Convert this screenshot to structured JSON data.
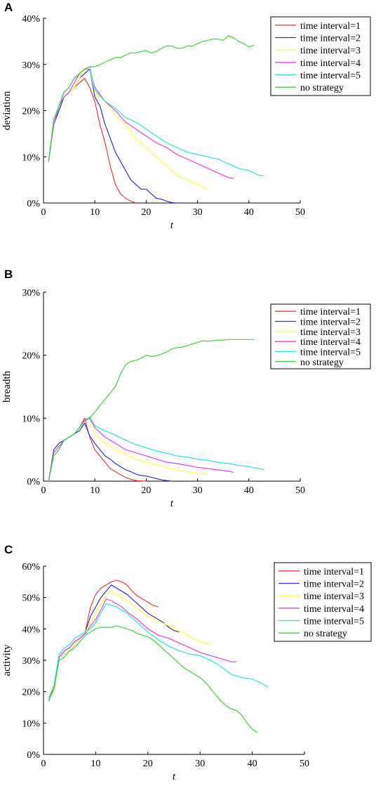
{
  "chart_data": [
    {
      "panel_label": "A",
      "type": "line",
      "xlabel": "t",
      "ylabel": "deviation",
      "xlim": [
        0,
        50
      ],
      "ylim": [
        0,
        40
      ],
      "xticks": [
        "0",
        "10",
        "20",
        "30",
        "40",
        "50"
      ],
      "yticks": [
        "0%",
        "10%",
        "20%",
        "30%",
        "40%"
      ],
      "legend_position": "top-right",
      "series": [
        {
          "name": "time interval=1",
          "color": "#e04040",
          "x": [
            1,
            2,
            3,
            4,
            5,
            6,
            7,
            8,
            9,
            10,
            11,
            12,
            13,
            14,
            15,
            16,
            17,
            18
          ],
          "y": [
            9,
            17,
            20,
            23,
            24,
            25,
            26,
            27,
            25,
            22,
            17,
            13,
            8,
            4,
            2,
            1,
            0.4,
            0
          ]
        },
        {
          "name": "time interval=2",
          "color": "#3333cc",
          "x": [
            1,
            2,
            3,
            4,
            5,
            6,
            7,
            8,
            9,
            10,
            11,
            12,
            13,
            14,
            15,
            16,
            17,
            18,
            19,
            20,
            21,
            22,
            23,
            24,
            25,
            26
          ],
          "y": [
            9,
            17,
            20,
            23,
            24,
            25,
            27,
            28,
            29,
            23,
            21,
            17,
            14,
            11,
            9,
            7,
            5,
            4,
            3,
            3,
            2,
            1,
            0.8,
            0.4,
            0.1,
            0
          ]
        },
        {
          "name": "time interval=3",
          "color": "#ffff44",
          "x": [
            1,
            2,
            3,
            4,
            5,
            6,
            7,
            8,
            9,
            10,
            12,
            14,
            16,
            18,
            20,
            22,
            24,
            26,
            28,
            30,
            32
          ],
          "y": [
            9,
            17,
            21,
            23,
            24,
            25,
            27,
            29,
            29,
            24,
            22,
            19,
            17,
            14,
            12,
            10,
            8,
            6,
            5,
            4,
            3
          ]
        },
        {
          "name": "time interval=4",
          "color": "#dd44dd",
          "x": [
            1,
            2,
            3,
            4,
            5,
            6,
            7,
            8,
            9,
            10,
            12,
            14,
            16,
            18,
            20,
            22,
            24,
            26,
            28,
            30,
            32,
            34,
            36,
            37
          ],
          "y": [
            9,
            17,
            21,
            23,
            24,
            26,
            28,
            29,
            29,
            25,
            22,
            20,
            17.5,
            16,
            14.5,
            13,
            12,
            10.5,
            9.5,
            8.5,
            7.5,
            6.5,
            5.5,
            5.3
          ]
        },
        {
          "name": "time interval=5",
          "color": "#33dddd",
          "x": [
            1,
            2,
            3,
            4,
            5,
            6,
            7,
            8,
            9,
            10,
            12,
            14,
            16,
            18,
            20,
            22,
            24,
            26,
            28,
            30,
            32,
            34,
            36,
            38,
            40,
            42,
            43
          ],
          "y": [
            9,
            18,
            21,
            24,
            25,
            27,
            28,
            29,
            29.5,
            24.5,
            22,
            20.5,
            18.5,
            17.5,
            16,
            14.5,
            13,
            12,
            11,
            10.5,
            10,
            9.5,
            8.5,
            7.5,
            7,
            6,
            5.9
          ]
        },
        {
          "name": "no strategy",
          "color": "#44cc44",
          "x": [
            1,
            2,
            3,
            4,
            5,
            6,
            7,
            8,
            9,
            10,
            11,
            12,
            13,
            14,
            15,
            16,
            17,
            18,
            19,
            20,
            21,
            22,
            23,
            24,
            25,
            26,
            27,
            28,
            29,
            30,
            31,
            32,
            33,
            34,
            35,
            36,
            37,
            38,
            39,
            40,
            41
          ],
          "y": [
            9,
            18,
            21,
            24,
            25,
            27,
            28,
            29,
            29.5,
            29.5,
            30,
            30.5,
            31,
            31.5,
            31.5,
            32,
            32.5,
            32.5,
            32.8,
            33,
            32.5,
            32.8,
            33.5,
            34,
            34,
            33.5,
            33.5,
            34,
            34,
            34.5,
            35,
            35.2,
            35.5,
            35.5,
            35.2,
            36.2,
            35.8,
            35,
            34.5,
            33.8,
            34.2
          ]
        }
      ]
    },
    {
      "panel_label": "B",
      "type": "line",
      "xlabel": "t",
      "ylabel": "breadth",
      "xlim": [
        0,
        50
      ],
      "ylim": [
        0,
        30
      ],
      "xticks": [
        "0",
        "10",
        "20",
        "30",
        "40",
        "50"
      ],
      "yticks": [
        "0%",
        "10%",
        "20%",
        "30%"
      ],
      "legend_position": "top-right",
      "series": [
        {
          "name": "time interval=1",
          "color": "#e04040",
          "x": [
            1,
            2,
            3,
            4,
            5,
            6,
            7,
            8,
            9,
            10,
            11,
            12,
            13,
            14,
            15,
            16,
            17,
            18,
            19,
            20
          ],
          "y": [
            0,
            4.5,
            5.5,
            6.5,
            7,
            7.5,
            8.5,
            10,
            7,
            5,
            4,
            3,
            2,
            1.5,
            1,
            0.6,
            0.3,
            0.1,
            0.05,
            0
          ]
        },
        {
          "name": "time interval=2",
          "color": "#3333cc",
          "x": [
            1,
            2,
            3,
            4,
            5,
            6,
            7,
            8,
            9,
            10,
            11,
            12,
            13,
            14,
            15,
            16,
            17,
            18,
            19,
            20,
            21,
            22,
            23,
            24,
            25
          ],
          "y": [
            0,
            5,
            6,
            6.5,
            7,
            7.5,
            8,
            9.2,
            7.2,
            6,
            5,
            4,
            3.5,
            2.8,
            2.3,
            1.8,
            1.5,
            1.1,
            0.9,
            0.8,
            0.6,
            0.4,
            0.2,
            0.1,
            0
          ]
        },
        {
          "name": "time interval=3",
          "color": "#ffff44",
          "x": [
            1,
            2,
            3,
            4,
            5,
            6,
            7,
            8,
            9,
            10,
            12,
            14,
            16,
            18,
            20,
            22,
            24,
            26,
            28,
            30,
            32
          ],
          "y": [
            0,
            4.5,
            5.5,
            6.5,
            7,
            7.5,
            8.5,
            9.8,
            10,
            7.5,
            6,
            5,
            4.2,
            3.5,
            3,
            2.6,
            2.2,
            1.8,
            1.5,
            1.3,
            1.1
          ]
        },
        {
          "name": "time interval=4",
          "color": "#dd44dd",
          "x": [
            1,
            2,
            3,
            4,
            5,
            6,
            7,
            8,
            9,
            10,
            12,
            14,
            16,
            18,
            20,
            22,
            24,
            26,
            28,
            30,
            32,
            34,
            36,
            37
          ],
          "y": [
            0,
            4.5,
            5.5,
            6.5,
            7,
            7.5,
            8.5,
            9.8,
            10,
            8.5,
            7,
            6,
            5,
            4.5,
            4,
            3.5,
            3,
            2.8,
            2.5,
            2.2,
            2,
            1.8,
            1.6,
            1.4
          ]
        },
        {
          "name": "time interval=5",
          "color": "#33dddd",
          "x": [
            1,
            2,
            3,
            4,
            5,
            6,
            7,
            8,
            9,
            10,
            12,
            14,
            16,
            18,
            20,
            22,
            24,
            26,
            28,
            30,
            32,
            34,
            36,
            38,
            40,
            42,
            43
          ],
          "y": [
            0,
            4,
            5,
            6.5,
            7,
            7.5,
            8.5,
            9.5,
            10.2,
            8.8,
            8,
            7.3,
            6.5,
            5.8,
            5.3,
            4.8,
            4.4,
            4,
            3.8,
            3.5,
            3.3,
            3,
            2.8,
            2.5,
            2.3,
            2,
            1.8
          ]
        },
        {
          "name": "no strategy",
          "color": "#44cc44",
          "x": [
            1,
            2,
            3,
            4,
            5,
            6,
            7,
            8,
            9,
            10,
            11,
            12,
            13,
            14,
            15,
            16,
            17,
            18,
            19,
            20,
            21,
            22,
            23,
            24,
            25,
            26,
            27,
            28,
            29,
            30,
            31,
            32,
            33,
            34,
            35,
            36,
            37,
            38,
            39,
            40,
            41
          ],
          "y": [
            0,
            4,
            5,
            6.5,
            7,
            7.5,
            8.5,
            9.5,
            10,
            11,
            12,
            13,
            14,
            15,
            17,
            18.5,
            19,
            19.2,
            19.5,
            20,
            19.8,
            19.9,
            20.2,
            20.5,
            21,
            21.2,
            21.3,
            21.5,
            21.8,
            22,
            22.3,
            22.2,
            22.3,
            22.4,
            22.4,
            22.5,
            22.5,
            22.5,
            22.5,
            22.5,
            22.5
          ]
        }
      ]
    },
    {
      "panel_label": "C",
      "type": "line",
      "xlabel": "t",
      "ylabel": "activity",
      "xlim": [
        0,
        50
      ],
      "ylim": [
        0,
        60
      ],
      "xticks": [
        "0",
        "10",
        "20",
        "30",
        "40",
        "50"
      ],
      "yticks": [
        "0%",
        "10%",
        "20%",
        "30%",
        "40%",
        "50%",
        "60%"
      ],
      "legend_position": "top-right",
      "series": [
        {
          "name": "time interval=1",
          "color": "#e04040",
          "x": [
            1,
            2,
            3,
            4,
            5,
            6,
            7,
            8,
            9,
            10,
            11,
            12,
            13,
            14,
            15,
            16,
            17,
            18,
            19,
            20,
            21,
            22
          ],
          "y": [
            17,
            21,
            31,
            33,
            34,
            36,
            37,
            39,
            47,
            51,
            53,
            54,
            55,
            55.5,
            55,
            54,
            52,
            50.5,
            49.5,
            48.5,
            47.5,
            47
          ]
        },
        {
          "name": "time interval=2",
          "color": "#3333cc",
          "x": [
            1,
            2,
            3,
            4,
            5,
            6,
            7,
            8,
            9,
            10,
            11,
            12,
            13,
            14,
            15,
            16,
            17,
            18,
            19,
            20,
            21,
            22,
            23,
            24,
            25,
            26
          ],
          "y": [
            18,
            20,
            31,
            32,
            33,
            35,
            37,
            39,
            44,
            47,
            50,
            52,
            54,
            53,
            52,
            51,
            49.5,
            48,
            46.5,
            45,
            44,
            43,
            42,
            40.5,
            39.5,
            39
          ]
        },
        {
          "name": "time interval=3",
          "color": "#ffff44",
          "x": [
            1,
            2,
            3,
            4,
            5,
            6,
            7,
            8,
            9,
            10,
            11,
            12,
            13,
            14,
            15,
            16,
            18,
            20,
            22,
            24,
            26,
            28,
            30,
            32
          ],
          "y": [
            18,
            20,
            31,
            32,
            33,
            35,
            37,
            39,
            42,
            45,
            48,
            51,
            52,
            51,
            50,
            49,
            46.5,
            44,
            42.5,
            41,
            39.5,
            37.5,
            36,
            35
          ]
        },
        {
          "name": "time interval=4",
          "color": "#dd44dd",
          "x": [
            1,
            2,
            3,
            4,
            5,
            6,
            7,
            8,
            9,
            10,
            11,
            12,
            13,
            14,
            15,
            16,
            18,
            20,
            22,
            24,
            26,
            28,
            30,
            32,
            34,
            36,
            37
          ],
          "y": [
            18,
            21,
            31,
            33,
            34,
            36,
            37,
            38.5,
            41,
            43,
            46,
            49.5,
            49,
            48,
            47,
            45.5,
            43,
            40,
            38,
            37,
            35.5,
            34,
            32.5,
            31.5,
            30.5,
            29.5,
            29.5
          ]
        },
        {
          "name": "time interval=5",
          "color": "#33dddd",
          "x": [
            1,
            2,
            3,
            4,
            5,
            6,
            7,
            8,
            9,
            10,
            11,
            12,
            13,
            14,
            15,
            16,
            18,
            20,
            22,
            24,
            26,
            28,
            30,
            32,
            34,
            36,
            38,
            40,
            42,
            43
          ],
          "y": [
            18,
            22,
            32,
            34,
            35,
            37,
            38,
            39,
            40,
            42,
            45,
            48,
            47.5,
            47,
            46,
            45,
            42,
            39,
            36.5,
            34.5,
            33,
            32,
            31.5,
            30,
            28,
            25.5,
            24.5,
            24,
            22.5,
            21.5
          ]
        },
        {
          "name": "no strategy",
          "color": "#44cc44",
          "x": [
            1,
            2,
            3,
            4,
            5,
            6,
            7,
            8,
            9,
            10,
            11,
            12,
            13,
            14,
            15,
            16,
            17,
            18,
            19,
            20,
            21,
            22,
            23,
            24,
            25,
            26,
            27,
            28,
            29,
            30,
            31,
            32,
            33,
            34,
            35,
            36,
            37,
            38,
            39,
            40,
            41
          ],
          "y": [
            17,
            21,
            30,
            31,
            33,
            34,
            36,
            38,
            39,
            40,
            40.5,
            40.5,
            40.5,
            41,
            40.5,
            40,
            39.5,
            38.5,
            38,
            37.5,
            36.5,
            35,
            33.5,
            32,
            30.5,
            29,
            27.5,
            26.5,
            25.5,
            24.5,
            23,
            21,
            19,
            17,
            15.5,
            14.5,
            14,
            12.5,
            10,
            8,
            7
          ]
        }
      ]
    }
  ]
}
